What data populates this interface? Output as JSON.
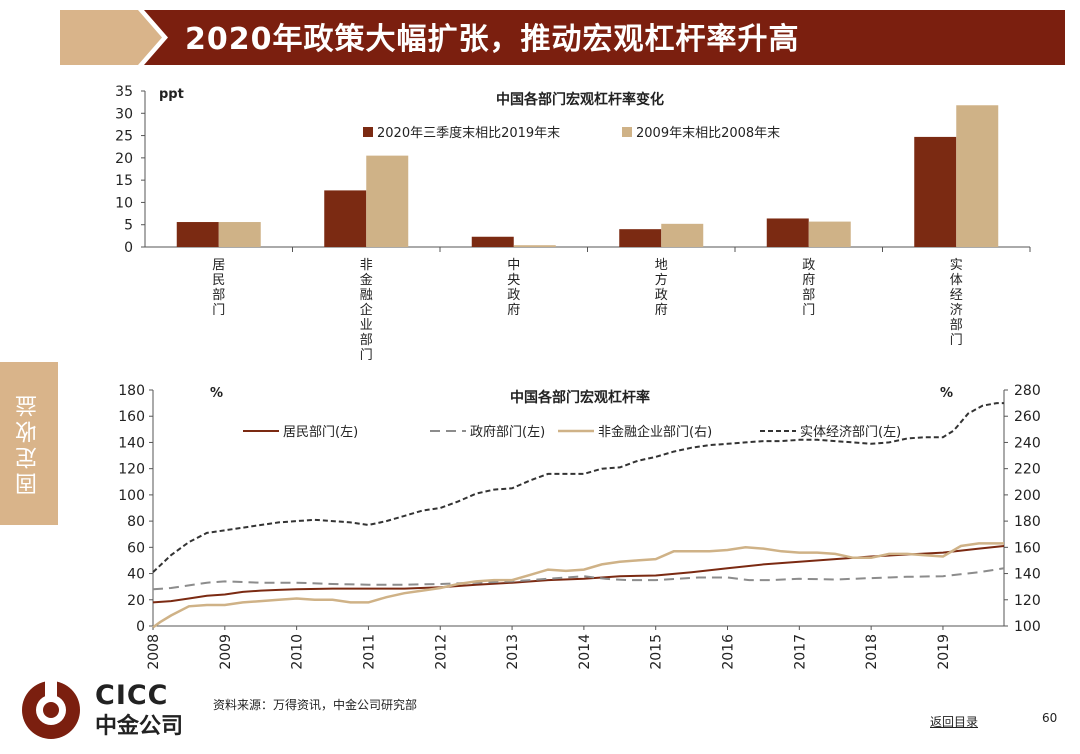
{
  "page": {
    "title": "2020年政策大幅扩张，推动宏观杠杆率升高",
    "side_tab": "固定收益",
    "source": "资料来源：万得资讯，中金公司研究部",
    "back_link": "返回目录",
    "page_number": "60",
    "logo_en": "CICC",
    "logo_cn": "中金公司"
  },
  "colors": {
    "brand_dark": "#7b1f0f",
    "brand_tan": "#d9b48a",
    "series_dark": "#7b2a12",
    "series_tan": "#cfb287",
    "series_gray": "#8c8c8c",
    "series_black": "#333333"
  },
  "chart_data": [
    {
      "type": "bar",
      "title": "中国各部门宏观杠杆率变化",
      "unit_label": "ppt",
      "categories": [
        "居民部门",
        "非金融企业部门",
        "中央政府",
        "地方政府",
        "政府部门",
        "实体经济部门"
      ],
      "series": [
        {
          "name": "2020年三季度末相比2019年末",
          "values": [
            5.6,
            12.7,
            2.3,
            4.0,
            6.4,
            24.7
          ]
        },
        {
          "name": "2009年末相比2008年末",
          "values": [
            5.6,
            20.5,
            0.4,
            5.2,
            5.7,
            31.8
          ]
        }
      ],
      "ylim": [
        0,
        35
      ],
      "yticks": [
        0,
        5,
        10,
        15,
        20,
        25,
        30,
        35
      ],
      "legend": "top"
    },
    {
      "type": "line",
      "title": "中国各部门宏观杠杆率",
      "y_left_label": "%",
      "y_right_label": "%",
      "ylim_left": [
        0,
        180
      ],
      "yticks_left": [
        0,
        20,
        40,
        60,
        80,
        100,
        120,
        140,
        160,
        180
      ],
      "ylim_right": [
        100,
        280
      ],
      "yticks_right": [
        100,
        120,
        140,
        160,
        180,
        200,
        220,
        240,
        260,
        280
      ],
      "xlim": [
        2008,
        2019.85
      ],
      "xticks": [
        "2008",
        "2009",
        "2010",
        "2011",
        "2012",
        "2013",
        "2014",
        "2015",
        "2016",
        "2017",
        "2018",
        "2019"
      ],
      "legend": "top",
      "series": [
        {
          "name": "居民部门(左)",
          "axis": "left",
          "style": "solid",
          "x": [
            2008.0,
            2008.25,
            2008.5,
            2008.75,
            2009.0,
            2009.25,
            2009.5,
            2009.75,
            2010.0,
            2010.5,
            2011.0,
            2011.5,
            2012.0,
            2012.5,
            2013.0,
            2013.5,
            2014.0,
            2014.5,
            2015.0,
            2015.5,
            2016.0,
            2016.5,
            2017.0,
            2017.5,
            2018.0,
            2018.5,
            2019.0,
            2019.5,
            2019.85
          ],
          "y": [
            18,
            19,
            21,
            23,
            24,
            26,
            27,
            27.5,
            28,
            28.5,
            28.5,
            28.5,
            29.5,
            31.5,
            33,
            35,
            36,
            38,
            38.5,
            41,
            44,
            47,
            49,
            51,
            53,
            54.5,
            56,
            59,
            61
          ]
        },
        {
          "name": "政府部门(左)",
          "axis": "left",
          "style": "dash",
          "x": [
            2008.0,
            2008.25,
            2008.5,
            2008.75,
            2009.0,
            2009.5,
            2010.0,
            2010.5,
            2011.0,
            2011.5,
            2012.0,
            2012.5,
            2013.0,
            2013.5,
            2014.0,
            2014.3,
            2014.6,
            2015.0,
            2015.3,
            2015.6,
            2016.0,
            2016.3,
            2016.6,
            2017.0,
            2017.5,
            2018.0,
            2018.5,
            2019.0,
            2019.5,
            2019.85
          ],
          "y": [
            28,
            29,
            31,
            33,
            34,
            33,
            33,
            32,
            31.5,
            31.5,
            32,
            33,
            34,
            36,
            38,
            36,
            35,
            35,
            36,
            37,
            37,
            35,
            35,
            36,
            35.5,
            36.5,
            37.5,
            38,
            41,
            44
          ]
        },
        {
          "name": "非金融企业部门(右)",
          "axis": "right",
          "style": "solid",
          "x": [
            2008.0,
            2008.1,
            2008.25,
            2008.5,
            2008.75,
            2009.0,
            2009.25,
            2009.5,
            2009.75,
            2010.0,
            2010.25,
            2010.5,
            2010.75,
            2011.0,
            2011.25,
            2011.5,
            2011.75,
            2012.0,
            2012.25,
            2012.5,
            2012.75,
            2013.0,
            2013.25,
            2013.5,
            2013.75,
            2014.0,
            2014.25,
            2014.5,
            2014.75,
            2015.0,
            2015.25,
            2015.5,
            2015.75,
            2016.0,
            2016.25,
            2016.5,
            2016.75,
            2017.0,
            2017.25,
            2017.5,
            2017.75,
            2018.0,
            2018.25,
            2018.5,
            2018.75,
            2019.0,
            2019.25,
            2019.5,
            2019.75,
            2019.85
          ],
          "y": [
            99,
            103,
            108,
            115,
            116,
            116,
            118,
            119,
            120,
            121,
            120,
            120,
            118,
            118,
            122,
            125,
            127,
            129,
            132,
            134,
            135,
            135,
            139,
            143,
            142,
            143,
            147,
            149,
            150,
            151,
            157,
            157,
            157,
            158,
            160,
            159,
            157,
            156,
            156,
            155,
            152,
            152,
            155,
            155,
            154,
            153,
            161,
            163,
            163,
            163
          ]
        },
        {
          "name": "实体经济部门(左)",
          "axis": "left",
          "style": "short-dash",
          "x": [
            2008.0,
            2008.25,
            2008.5,
            2008.75,
            2009.0,
            2009.25,
            2009.5,
            2009.75,
            2010.0,
            2010.25,
            2010.5,
            2010.75,
            2011.0,
            2011.25,
            2011.5,
            2011.75,
            2012.0,
            2012.25,
            2012.5,
            2012.75,
            2013.0,
            2013.25,
            2013.5,
            2013.75,
            2014.0,
            2014.25,
            2014.5,
            2014.75,
            2015.0,
            2015.25,
            2015.5,
            2015.75,
            2016.0,
            2016.25,
            2016.5,
            2016.75,
            2017.0,
            2017.25,
            2017.5,
            2017.75,
            2018.0,
            2018.25,
            2018.5,
            2018.75,
            2019.0,
            2019.15,
            2019.35,
            2019.55,
            2019.75,
            2019.85
          ],
          "y": [
            41,
            54,
            64,
            71,
            73,
            75,
            77,
            79,
            80,
            81,
            80,
            79,
            77,
            80,
            84,
            88,
            90,
            95,
            101,
            104,
            105,
            111,
            116,
            116,
            116,
            120,
            121,
            126,
            129,
            133,
            136,
            138,
            139,
            140,
            141,
            141,
            142,
            142,
            141,
            140,
            139,
            140,
            143,
            144,
            144,
            149,
            162,
            168,
            170,
            170
          ]
        }
      ]
    }
  ]
}
